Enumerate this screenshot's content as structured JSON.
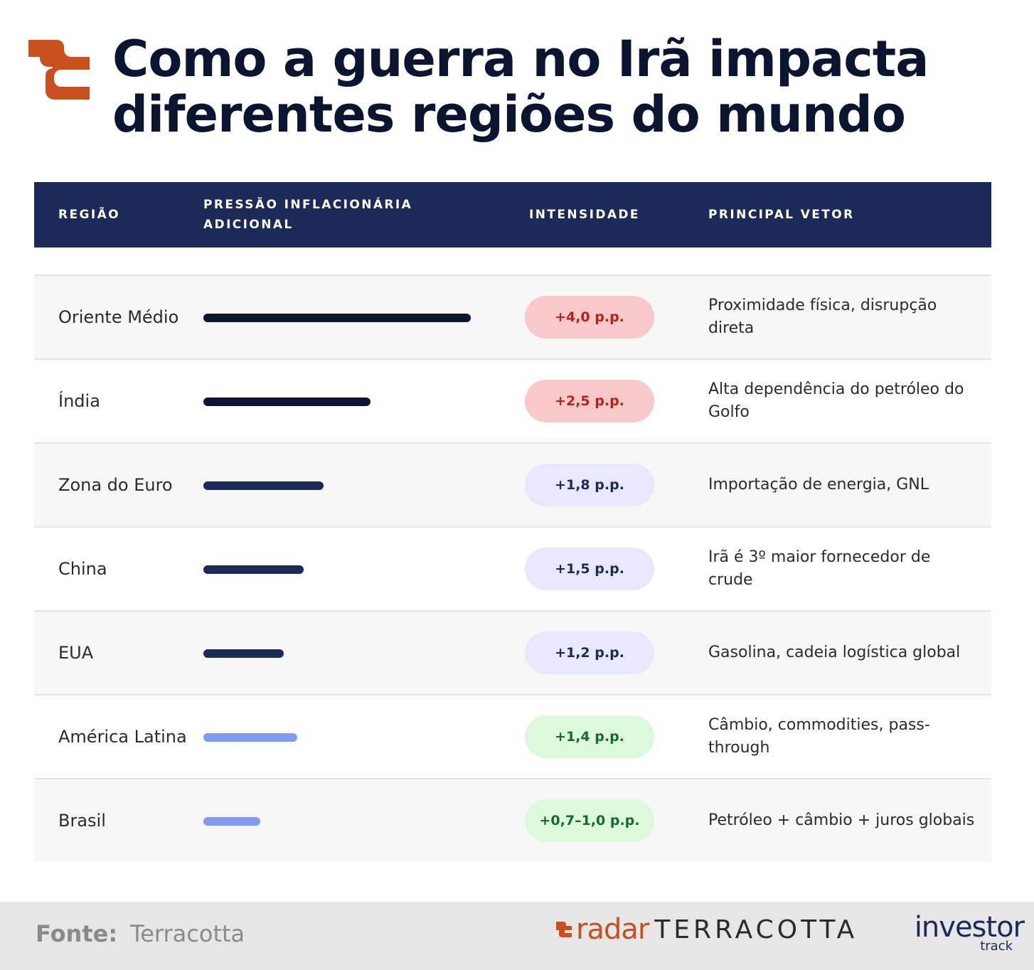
{
  "header": {
    "title_line1": "Como a guerra no Irã impacta",
    "title_line2": "diferentes regiões do mundo",
    "logo_icon": "terracotta-mark-icon",
    "logo_color": "#c94f1f"
  },
  "table": {
    "columns": {
      "region": "REGIÃO",
      "pressure": "PRESSÃO INFLACIONÁRIA ADICIONAL",
      "intensity": "INTENSIDADE",
      "vector": "PRINCIPAL VETOR"
    },
    "header_color": "#1b2a57",
    "rows": [
      {
        "region": "Oriente Médio",
        "pressure_level": 4.0,
        "bar_color": "#0b1530",
        "intensity": "+4,0 p.p.",
        "pill_bg": "#f9c8c8",
        "pill_fg": "#b42318",
        "vector": "Proximidade física, disrupção direta"
      },
      {
        "region": "Índia",
        "pressure_level": 2.5,
        "bar_color": "#0b1530",
        "intensity": "+2,5 p.p.",
        "pill_bg": "#f9c8c8",
        "pill_fg": "#b42318",
        "vector": "Alta dependência do petróleo do Golfo"
      },
      {
        "region": "Zona do Euro",
        "pressure_level": 1.8,
        "bar_color": "#1b2a57",
        "intensity": "+1,8 p.p.",
        "pill_bg": "#e8e8fc",
        "pill_fg": "#1b2a57",
        "vector": "Importação de energia, GNL"
      },
      {
        "region": "China",
        "pressure_level": 1.5,
        "bar_color": "#1b2a57",
        "intensity": "+1,5 p.p.",
        "pill_bg": "#e8e8fc",
        "pill_fg": "#1b2a57",
        "vector": "Irã é 3º maior fornecedor de crude"
      },
      {
        "region": "EUA",
        "pressure_level": 1.2,
        "bar_color": "#1b2a57",
        "intensity": "+1,2 p.p.",
        "pill_bg": "#e8e8fc",
        "pill_fg": "#1b2a57",
        "vector": "Gasolina, cadeia logística global"
      },
      {
        "region": "América Latina",
        "pressure_level": 1.4,
        "bar_color": "#7f9af0",
        "intensity": "+1,4 p.p.",
        "pill_bg": "#dcfadb",
        "pill_fg": "#146b2c",
        "vector": "Câmbio, commodities, pass-through"
      },
      {
        "region": "Brasil",
        "pressure_level": 0.85,
        "bar_color": "#7f9af0",
        "intensity": "+0,7–1,0 p.p.",
        "pill_bg": "#dcfadb",
        "pill_fg": "#146b2c",
        "vector": "Petróleo + câmbio + juros globais"
      }
    ]
  },
  "footer": {
    "source_label": "Fonte:",
    "source_value": "Terracotta",
    "brand_radar": "radar",
    "brand_terracotta": "TERRACOTTA",
    "brand_investor": "investor",
    "brand_track": "track"
  }
}
